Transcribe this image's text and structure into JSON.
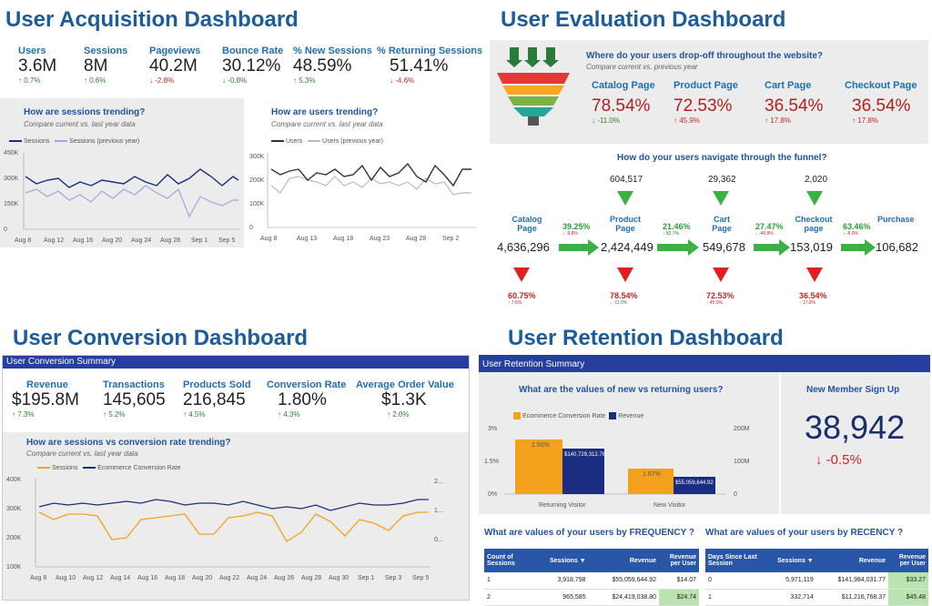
{
  "acquisition": {
    "title": "User Acquisition Dashboard",
    "kpis": [
      {
        "label": "Users",
        "value": "3.6M",
        "change": "0.7%",
        "dir": "up"
      },
      {
        "label": "Sessions",
        "value": "8M",
        "change": "0.6%",
        "dir": "up"
      },
      {
        "label": "Pageviews",
        "value": "40.2M",
        "change": "-2.8%",
        "dir": "down"
      },
      {
        "label": "Bounce Rate",
        "value": "30.12%",
        "change": "-0.8%",
        "dir": "down"
      },
      {
        "label": "% New Sessions",
        "value": "48.59%",
        "change": "5.3%",
        "dir": "up"
      },
      {
        "label": "% Returning Sessions",
        "value": "51.41%",
        "change": "-4.6%",
        "dir": "down"
      }
    ],
    "sessions_chart": {
      "heading": "How are sessions trending?",
      "sub": "Compare current vs. last year data",
      "legend": [
        "Sessions",
        "Sessions (previous year)"
      ],
      "yticks": [
        "450K",
        "300K",
        "150K",
        "0"
      ],
      "xticks": [
        "Aug 8",
        "Aug 12",
        "Aug 16",
        "Aug 20",
        "Aug 24",
        "Aug 28",
        "Sep 1",
        "Sep 5"
      ]
    },
    "users_chart": {
      "heading": "How are users trending?",
      "sub": "Compare current vs. last year data",
      "legend": [
        "Users",
        "Users (previous year)"
      ],
      "yticks": [
        "300K",
        "200K",
        "100K",
        "0"
      ],
      "xticks": [
        "Aug 8",
        "Aug 13",
        "Aug 18",
        "Aug 23",
        "Aug 28",
        "Sep 2"
      ]
    }
  },
  "evaluation": {
    "title": "User Evaluation Dashboard",
    "dropoff_heading": "Where do your users drop-off throughout the website?",
    "dropoff_sub": "Compare current vs. previous year",
    "pages": [
      {
        "label": "Catalog Page",
        "value": "78.54%",
        "change": "-11.0%",
        "dir": "down-green"
      },
      {
        "label": "Product Page",
        "value": "72.53%",
        "change": "45.9%",
        "dir": "up-red"
      },
      {
        "label": "Cart Page",
        "value": "36.54%",
        "change": "17.8%",
        "dir": "up-red"
      },
      {
        "label": "Checkout Page",
        "value": "36.54%",
        "change": "17.8%",
        "dir": "up-red"
      }
    ],
    "funnel_heading": "How do your users navigate through the funnel?",
    "stages": [
      {
        "label": "Catalog Page",
        "value": "4,636,296"
      },
      {
        "label": "Product Page",
        "value": "2,424,449",
        "in": "604,517",
        "drop": "78.54%",
        "drop_chg": "-11.0%"
      },
      {
        "label": "Cart Page",
        "value": "549,678",
        "in": "29,362",
        "drop": "72.53%",
        "drop_chg": "45.9%"
      },
      {
        "label": "Checkout page",
        "value": "153,019",
        "in": "2,020",
        "drop": "36.54%",
        "drop_chg": "17.8%"
      },
      {
        "label": "Purchase",
        "value": "106,682"
      }
    ],
    "first_drop": {
      "pct": "60.75%",
      "chg": "7.6%"
    },
    "transitions": [
      {
        "pct": "39.25%",
        "chg": "-9.8%"
      },
      {
        "pct": "21.46%",
        "chg": "82.7%"
      },
      {
        "pct": "27.47%",
        "chg": "-45.8%"
      },
      {
        "pct": "63.46%",
        "chg": "-8.0%"
      }
    ]
  },
  "conversion": {
    "title": "User Conversion Dashboard",
    "bar": "User Conversion Summary",
    "kpis": [
      {
        "label": "Revenue",
        "value": "$195.8M",
        "change": "7.3%"
      },
      {
        "label": "Transactions",
        "value": "145,605",
        "change": "5.2%"
      },
      {
        "label": "Products Sold",
        "value": "216,845",
        "change": "4.5%"
      },
      {
        "label": "Conversion Rate",
        "value": "1.80%",
        "change": "4.3%"
      },
      {
        "label": "Average Order Value",
        "value": "$1.3K",
        "change": "2.0%"
      }
    ],
    "chart": {
      "heading": "How are sessions vs conversion rate trending?",
      "sub": "Compare current vs. last year data",
      "legend": [
        "Sessions",
        "Ecommerce Conversion Rate"
      ],
      "yticks": [
        "400K",
        "300K",
        "200K",
        "100K"
      ],
      "ryticks": [
        "2...",
        "1...",
        "0..."
      ],
      "xticks": [
        "Aug 8",
        "Aug 10",
        "Aug 12",
        "Aug 14",
        "Aug 16",
        "Aug 18",
        "Aug 20",
        "Aug 22",
        "Aug 24",
        "Aug 26",
        "Aug 28",
        "Aug 30",
        "Sep 1",
        "Sep 3",
        "Sep 5"
      ]
    }
  },
  "retention": {
    "title": "User Retention Dashboard",
    "bar": "User Retention Summary",
    "bar_heading": "What are the values of new vs returning users?",
    "legend": [
      "Ecommerce Conversion Rate",
      "Revenue"
    ],
    "left_ticks": [
      "3%",
      "1.5%",
      "0%"
    ],
    "right_ticks": [
      "200M",
      "100M",
      "0"
    ],
    "groups": [
      {
        "label": "Returning Visitor",
        "rate": "2.50%",
        "revenue": "$140,729,312.76"
      },
      {
        "label": "New Visitor",
        "rate": "1.67%",
        "revenue": "$55,059,644.92"
      }
    ],
    "signup_label": "New Member Sign Up",
    "signup_value": "38,942",
    "signup_change": "-0.5%",
    "freq_heading": "What are values of your users by FREQUENCY ?",
    "rec_heading": "What are values of your users by RECENCY ?",
    "freq_cols": [
      "Count of Sessions",
      "Sessions ▼",
      "Revenue",
      "Revenue per User"
    ],
    "freq_rows": [
      [
        "1",
        "3,918,798",
        "$55,059,644.92",
        "$14.07"
      ],
      [
        "2",
        "965,585",
        "$24,419,038.80",
        "$24.74"
      ]
    ],
    "rec_cols": [
      "Days Since Last Session",
      "Sessions ▼",
      "Revenue",
      "Revenue per User"
    ],
    "rec_rows": [
      [
        "0",
        "5,971,119",
        "$141,984,031.77",
        "$33.27"
      ],
      [
        "1",
        "332,714",
        "$11,216,768.37",
        "$45.48"
      ]
    ]
  },
  "colors": {
    "title": "#1d5c9b",
    "label": "#1f6fb5",
    "bar": "#263f9e",
    "orange": "#f4a21e",
    "navy": "#1a2d80",
    "green": "#3cb043",
    "red": "#e02020"
  }
}
